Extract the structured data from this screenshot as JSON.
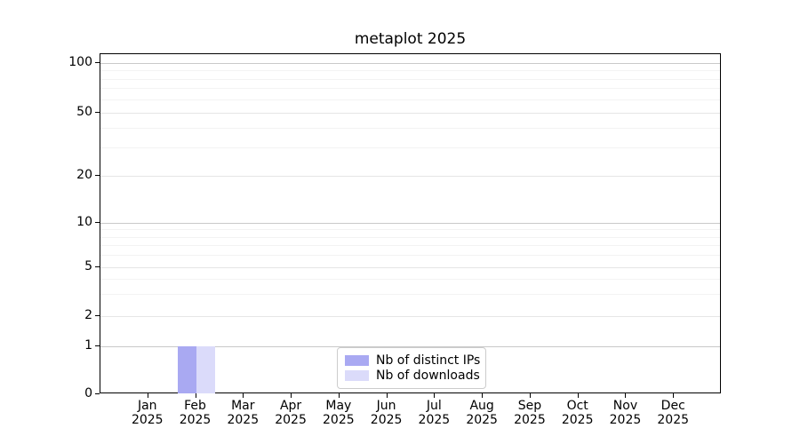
{
  "chart_data": {
    "type": "bar",
    "title": "metaplot 2025",
    "x_ticks": [
      {
        "month": "Jan",
        "year": "2025"
      },
      {
        "month": "Feb",
        "year": "2025"
      },
      {
        "month": "Mar",
        "year": "2025"
      },
      {
        "month": "Apr",
        "year": "2025"
      },
      {
        "month": "May",
        "year": "2025"
      },
      {
        "month": "Jun",
        "year": "2025"
      },
      {
        "month": "Jul",
        "year": "2025"
      },
      {
        "month": "Aug",
        "year": "2025"
      },
      {
        "month": "Sep",
        "year": "2025"
      },
      {
        "month": "Oct",
        "year": "2025"
      },
      {
        "month": "Nov",
        "year": "2025"
      },
      {
        "month": "Dec",
        "year": "2025"
      }
    ],
    "series": [
      {
        "name": "Nb of distinct IPs",
        "color": "#a9a9f2",
        "values": [
          0,
          1,
          0,
          0,
          0,
          0,
          0,
          0,
          0,
          0,
          0,
          0
        ]
      },
      {
        "name": "Nb of downloads",
        "color": "#dbdbfa",
        "values": [
          0,
          1,
          0,
          0,
          0,
          0,
          0,
          0,
          0,
          0,
          0,
          0
        ]
      }
    ],
    "yscale": "symlog",
    "y_ticks": [
      0,
      1,
      2,
      5,
      10,
      20,
      50,
      100
    ],
    "y_minor_gridlines": [
      3,
      4,
      6,
      7,
      8,
      9,
      30,
      40,
      60,
      70,
      80,
      90
    ],
    "ylim": [
      0,
      112
    ],
    "grid": "both",
    "legend_position": "lower-center-inside",
    "colors": {
      "background": "#ffffff",
      "spine": "#000000",
      "grid_power10": "#c9c9c9",
      "grid_major": "#e6e6e6",
      "grid_minor": "#f3f3f3"
    }
  }
}
